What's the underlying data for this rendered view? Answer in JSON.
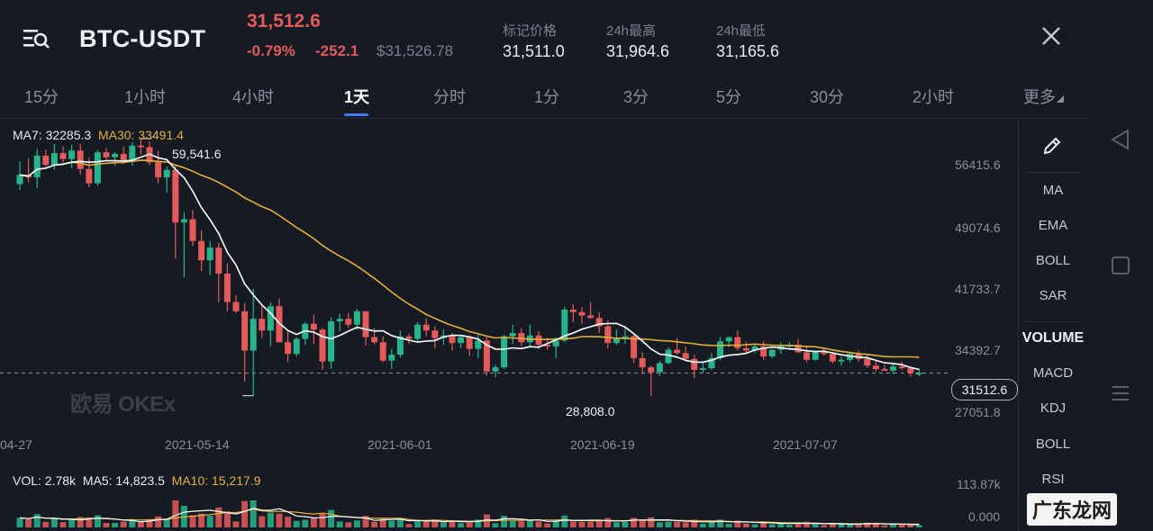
{
  "header": {
    "pair": "BTC-USDT",
    "price": "31,512.6",
    "change_pct": "-0.79%",
    "change_abs": "-252.1",
    "usd_value": "$31,526.78",
    "stats": [
      {
        "label": "标记价格",
        "value": "31,511.0"
      },
      {
        "label": "24h最高",
        "value": "31,964.6"
      },
      {
        "label": "24h最低",
        "value": "31,165.6"
      }
    ]
  },
  "tabs": [
    {
      "label": "15分"
    },
    {
      "label": "1小时"
    },
    {
      "label": "4小时"
    },
    {
      "label": "1天",
      "active": true
    },
    {
      "label": "分时"
    },
    {
      "label": "1分"
    },
    {
      "label": "3分"
    },
    {
      "label": "5分"
    },
    {
      "label": "30分"
    },
    {
      "label": "2小时"
    },
    {
      "label": "更多"
    }
  ],
  "sidebar": {
    "indicators": [
      "MA",
      "EMA",
      "BOLL",
      "SAR"
    ],
    "sub_indicators": [
      "VOLUME",
      "MACD",
      "KDJ",
      "BOLL",
      "RSI"
    ]
  },
  "legend": {
    "ma7": "MA7: 32285.3",
    "ma30": "MA30: 33491.4",
    "vol": "VOL: 2.78k",
    "ma5": "MA5: 14,823.5",
    "ma10": "MA10: 15,217.9"
  },
  "chart_labels": {
    "y_ticks": [
      "56415.6",
      "49074.6",
      "41733.7",
      "34392.7",
      "27051.8"
    ],
    "x_ticks": [
      "04-27",
      "2021-05-14",
      "2021-06-01",
      "2021-06-19",
      "2021-07-07"
    ],
    "high_marker": "59,541.6",
    "low_marker": "28,808.0",
    "current_price": "31512.6",
    "vol_max": "113.87k",
    "vol_min": "0.000"
  },
  "watermark": "欧易 OKEx",
  "site_watermark": "广东龙网",
  "colors": {
    "up": "#26b58a",
    "down": "#e55a5a",
    "ma7": "#ffffff",
    "ma30": "#e6b035",
    "accent": "#3d7cf5",
    "background": "#161a23"
  },
  "chart_data": {
    "type": "candlestick",
    "x_range": [
      "2021-04-27",
      "2021-07-15"
    ],
    "ylim": [
      27051.8,
      59541.6
    ],
    "ohlc": [
      [
        54100,
        56800,
        53400,
        55200
      ],
      [
        55200,
        57200,
        54300,
        54900
      ],
      [
        54900,
        58300,
        53600,
        57500
      ],
      [
        57500,
        58200,
        56200,
        56400
      ],
      [
        56400,
        58900,
        55800,
        57800
      ],
      [
        57800,
        58600,
        56700,
        57100
      ],
      [
        57100,
        58800,
        56000,
        58100
      ],
      [
        58100,
        58900,
        55200,
        55900
      ],
      [
        55900,
        57300,
        53700,
        54200
      ],
      [
        54200,
        58200,
        53900,
        57900
      ],
      [
        57900,
        58400,
        56800,
        57300
      ],
      [
        57300,
        57900,
        56300,
        57700
      ],
      [
        57700,
        58600,
        56500,
        56900
      ],
      [
        56900,
        59100,
        56300,
        58700
      ],
      [
        58700,
        59541.6,
        57600,
        58500
      ],
      [
        58500,
        59200,
        56400,
        56700
      ],
      [
        56700,
        58100,
        54200,
        54900
      ],
      [
        54900,
        56200,
        53100,
        55800
      ],
      [
        55800,
        56400,
        45200,
        49500
      ],
      [
        49500,
        50700,
        43000,
        49900
      ],
      [
        49900,
        51000,
        46700,
        47300
      ],
      [
        47300,
        48600,
        43700,
        45000
      ],
      [
        45000,
        47300,
        43200,
        46500
      ],
      [
        46500,
        47100,
        40000,
        43400
      ],
      [
        43400,
        44600,
        38900,
        40000
      ],
      [
        40000,
        40800,
        38700,
        38900
      ],
      [
        38900,
        39900,
        30500,
        34200
      ],
      [
        34200,
        41600,
        28808,
        38000
      ],
      [
        38000,
        39700,
        35700,
        36600
      ],
      [
        36600,
        40000,
        34700,
        39500
      ],
      [
        39500,
        40400,
        35500,
        35200
      ],
      [
        35200,
        36600,
        32800,
        33800
      ],
      [
        33800,
        35800,
        33500,
        35600
      ],
      [
        35600,
        37600,
        34900,
        37400
      ],
      [
        37400,
        38500,
        35000,
        36700
      ],
      [
        36700,
        36900,
        31900,
        32900
      ],
      [
        32900,
        38200,
        32000,
        37700
      ],
      [
        37700,
        38600,
        36500,
        38000
      ],
      [
        38000,
        38700,
        36900,
        37300
      ],
      [
        37300,
        39200,
        36700,
        38900
      ],
      [
        38900,
        38900,
        34800,
        35800
      ],
      [
        35800,
        36900,
        34900,
        35200
      ],
      [
        35200,
        35900,
        32800,
        33000
      ],
      [
        33000,
        34400,
        32000,
        33700
      ],
      [
        33700,
        36600,
        33400,
        35900
      ],
      [
        35900,
        36200,
        35000,
        35600
      ],
      [
        35600,
        37600,
        35100,
        37300
      ],
      [
        37300,
        38100,
        35900,
        36600
      ],
      [
        36600,
        37100,
        34500,
        35700
      ],
      [
        35700,
        36700,
        34900,
        36000
      ],
      [
        36000,
        36300,
        34200,
        35100
      ],
      [
        35100,
        36000,
        34500,
        35800
      ],
      [
        35800,
        36000,
        33600,
        34400
      ],
      [
        34400,
        36100,
        33300,
        35400
      ],
      [
        35400,
        35800,
        31200,
        31700
      ],
      [
        31700,
        32500,
        31000,
        32200
      ],
      [
        32200,
        36100,
        32000,
        35900
      ],
      [
        35900,
        37300,
        35000,
        36300
      ],
      [
        36300,
        36900,
        34700,
        35200
      ],
      [
        35200,
        37300,
        34600,
        36000
      ],
      [
        36000,
        36500,
        34400,
        34900
      ],
      [
        34900,
        35700,
        34300,
        34700
      ],
      [
        34700,
        35800,
        33300,
        35400
      ],
      [
        35400,
        39400,
        35200,
        39100
      ],
      [
        39100,
        39700,
        37600,
        38800
      ],
      [
        38800,
        39400,
        37400,
        38400
      ],
      [
        38400,
        40000,
        38000,
        38100
      ],
      [
        38100,
        38800,
        36300,
        37100
      ],
      [
        37100,
        37800,
        34500,
        35100
      ],
      [
        35100,
        36700,
        34900,
        35600
      ],
      [
        35600,
        37000,
        35000,
        35900
      ],
      [
        35900,
        36100,
        32700,
        33300
      ],
      [
        33300,
        34000,
        31400,
        32200
      ],
      [
        32200,
        32400,
        28808,
        31600
      ],
      [
        31600,
        33000,
        31200,
        32700
      ],
      [
        32700,
        34600,
        32600,
        34300
      ],
      [
        34300,
        35700,
        33700,
        33900
      ],
      [
        33900,
        34700,
        32900,
        33200
      ],
      [
        33200,
        33700,
        30900,
        31900
      ],
      [
        31900,
        32800,
        31500,
        32100
      ],
      [
        32100,
        33900,
        31900,
        33300
      ],
      [
        33300,
        35800,
        33000,
        35300
      ],
      [
        35300,
        35900,
        34600,
        35800
      ],
      [
        35800,
        36600,
        34200,
        34500
      ],
      [
        34500,
        35200,
        33800,
        34200
      ],
      [
        34200,
        35000,
        33900,
        34700
      ],
      [
        34700,
        35300,
        33100,
        33500
      ],
      [
        33500,
        34400,
        33300,
        34300
      ],
      [
        34300,
        35200,
        33800,
        34700
      ],
      [
        34700,
        35200,
        34300,
        34900
      ],
      [
        34900,
        35600,
        33900,
        34000
      ],
      [
        34000,
        34800,
        32800,
        33100
      ],
      [
        33100,
        34200,
        33000,
        34100
      ],
      [
        34100,
        34400,
        33600,
        33800
      ],
      [
        33800,
        34000,
        32700,
        32900
      ],
      [
        32900,
        33500,
        32400,
        33100
      ],
      [
        33100,
        34000,
        32800,
        33800
      ],
      [
        33800,
        34200,
        32900,
        33200
      ],
      [
        33200,
        33800,
        32100,
        32400
      ],
      [
        32400,
        33100,
        31700,
        32000
      ],
      [
        32000,
        32500,
        31800,
        31800
      ],
      [
        31800,
        32600,
        31400,
        32300
      ],
      [
        32300,
        32900,
        31900,
        32100
      ],
      [
        32100,
        32200,
        31100,
        31500
      ],
      [
        31500,
        31964.6,
        31165.6,
        31512.6
      ]
    ]
  }
}
